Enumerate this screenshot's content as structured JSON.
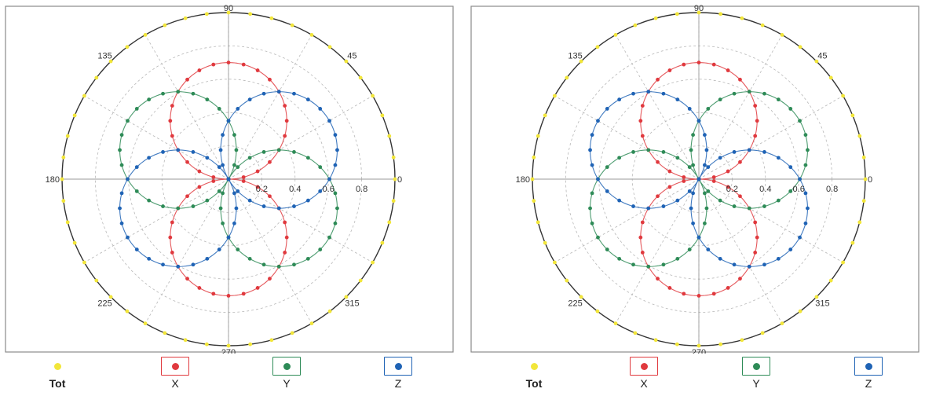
{
  "chart_data": [
    {
      "type": "polar",
      "theta_ticks": [
        "0",
        "45",
        "90",
        "135",
        "180",
        "225",
        "270",
        "315"
      ],
      "r_ticks": [
        "0.2",
        "0.4",
        "0.6",
        "0.8"
      ],
      "r_max": 1.0,
      "grid": true,
      "legend_position": "bottom",
      "legend": [
        {
          "name": "Tot",
          "color": "#f2e63a"
        },
        {
          "name": "X",
          "color": "#e0393e"
        },
        {
          "name": "Y",
          "color": "#2e8b57"
        },
        {
          "name": "Z",
          "color": "#1f63b5"
        }
      ],
      "series": [
        {
          "name": "Tot",
          "color": "#f2e63a",
          "radius": 1.0,
          "points_deg_step": 7.5
        },
        {
          "name": "X",
          "color": "#e0393e",
          "shape": "rose",
          "lobe_axes_deg": [
            90,
            270
          ],
          "peak": 0.7,
          "points_deg_step": 7.5
        },
        {
          "name": "Y",
          "color": "#2e8b57",
          "shape": "rose",
          "lobe_axes_deg": [
            150,
            330
          ],
          "peak": 0.7,
          "points_deg_step": 7.5
        },
        {
          "name": "Z",
          "color": "#1f63b5",
          "shape": "rose",
          "lobe_axes_deg": [
            30,
            210
          ],
          "peak": 0.7,
          "points_deg_step": 7.5
        }
      ]
    },
    {
      "type": "polar",
      "theta_ticks": [
        "0",
        "45",
        "90",
        "135",
        "180",
        "225",
        "270",
        "315"
      ],
      "r_ticks": [
        "0.2",
        "0.4",
        "0.6",
        "0.8"
      ],
      "r_max": 1.0,
      "grid": true,
      "legend_position": "bottom",
      "legend": [
        {
          "name": "Tot",
          "color": "#f2e63a"
        },
        {
          "name": "X",
          "color": "#e0393e"
        },
        {
          "name": "Y",
          "color": "#2e8b57"
        },
        {
          "name": "Z",
          "color": "#1f63b5"
        }
      ],
      "series": [
        {
          "name": "Tot",
          "color": "#f2e63a",
          "radius": 1.0,
          "points_deg_step": 7.5
        },
        {
          "name": "X",
          "color": "#e0393e",
          "shape": "rose",
          "lobe_axes_deg": [
            90,
            270
          ],
          "peak": 0.7,
          "points_deg_step": 7.5
        },
        {
          "name": "Y",
          "color": "#2e8b57",
          "shape": "rose",
          "lobe_axes_deg": [
            30,
            210
          ],
          "peak": 0.7,
          "points_deg_step": 7.5
        },
        {
          "name": "Z",
          "color": "#1f63b5",
          "shape": "rose",
          "lobe_axes_deg": [
            150,
            330
          ],
          "peak": 0.7,
          "points_deg_step": 7.5
        }
      ]
    }
  ]
}
